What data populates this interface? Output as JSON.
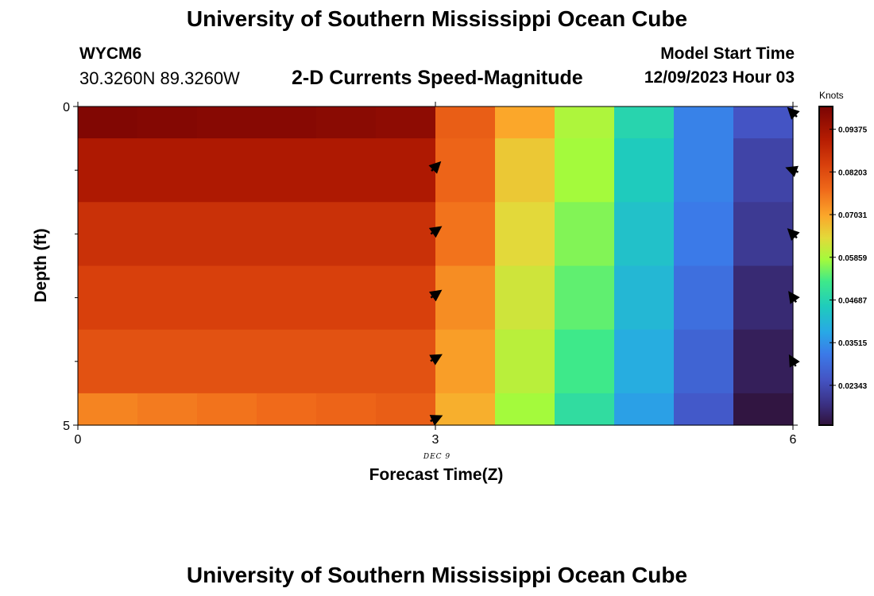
{
  "header": {
    "title": "University of Southern Mississippi Ocean Cube",
    "station_id": "WYCM6",
    "station_coords": "30.3260N  89.3260W",
    "subtitle": "2-D Currents Speed-Magnitude",
    "model_start_label": "Model Start Time",
    "model_start_value": "12/09/2023 Hour 03"
  },
  "footer": {
    "title": "University of Southern Mississippi Ocean Cube"
  },
  "chart_data": {
    "type": "heatmap",
    "title": "2-D Currents Speed-Magnitude",
    "xlabel": "Forecast Time(Z)",
    "ylabel": "Depth (ft)",
    "date_label": "DEC 9",
    "xlim": [
      0,
      6
    ],
    "ylim": [
      0,
      5
    ],
    "x_ticks": [
      "0",
      "3",
      "6"
    ],
    "y_ticks": [
      "0",
      "5"
    ],
    "y_minor_ticks": [
      1,
      2,
      3,
      4
    ],
    "x_columns": [
      0.25,
      0.75,
      1.25,
      1.75,
      2.25,
      2.75,
      3.25,
      3.75,
      4.25,
      4.75,
      5.25,
      5.75
    ],
    "x_column_width": 0.5,
    "y_rows": [
      0,
      0.75,
      1.75,
      2.75,
      3.75,
      4.75
    ],
    "y_row_edges": [
      0,
      0.5,
      1.5,
      2.5,
      3.5,
      4.5,
      5
    ],
    "values": [
      [
        0.099,
        0.0985,
        0.098,
        0.098,
        0.0975,
        0.097,
        0.079,
        0.07,
        0.059,
        0.047,
        0.033,
        0.025
      ],
      [
        0.092,
        0.092,
        0.092,
        0.092,
        0.092,
        0.092,
        0.078,
        0.066,
        0.058,
        0.045,
        0.033,
        0.022
      ],
      [
        0.087,
        0.087,
        0.087,
        0.087,
        0.087,
        0.087,
        0.076,
        0.064,
        0.056,
        0.043,
        0.032,
        0.02
      ],
      [
        0.084,
        0.084,
        0.084,
        0.084,
        0.084,
        0.084,
        0.073,
        0.062,
        0.054,
        0.041,
        0.03,
        0.017
      ],
      [
        0.081,
        0.081,
        0.081,
        0.081,
        0.081,
        0.081,
        0.071,
        0.06,
        0.052,
        0.039,
        0.028,
        0.015
      ],
      [
        0.074,
        0.075,
        0.076,
        0.077,
        0.078,
        0.079,
        0.069,
        0.058,
        0.049,
        0.037,
        0.026,
        0.013
      ]
    ],
    "vectors": [
      {
        "x": 3,
        "y": 0.95,
        "dir_deg": 315
      },
      {
        "x": 3,
        "y": 1.95,
        "dir_deg": 325
      },
      {
        "x": 3,
        "y": 2.95,
        "dir_deg": 325
      },
      {
        "x": 3,
        "y": 3.95,
        "dir_deg": 330
      },
      {
        "x": 3,
        "y": 4.9,
        "dir_deg": 335
      },
      {
        "x": 6,
        "y": 0.1,
        "dir_deg": 225
      },
      {
        "x": 6,
        "y": 1.0,
        "dir_deg": 200
      },
      {
        "x": 6,
        "y": 2.0,
        "dir_deg": 225
      },
      {
        "x": 6,
        "y": 3.0,
        "dir_deg": 235
      },
      {
        "x": 6,
        "y": 4.0,
        "dir_deg": 240
      }
    ],
    "colorbar": {
      "units": "Knots",
      "range": [
        0.0125,
        0.1
      ],
      "tick_values": [
        0.09375,
        0.08203,
        0.07031,
        0.05859,
        0.04687,
        0.03515,
        0.02343
      ],
      "tick_labels": [
        "0.09375",
        "0.08203",
        "0.07031",
        "0.05859",
        "0.04687",
        "0.03515",
        "0.02343"
      ],
      "stops": [
        {
          "v": 0.0125,
          "color": "#30123b"
        },
        {
          "v": 0.018,
          "color": "#3a2f80"
        },
        {
          "v": 0.025,
          "color": "#4454c4"
        },
        {
          "v": 0.032,
          "color": "#3b7ae8"
        },
        {
          "v": 0.038,
          "color": "#28a8e6"
        },
        {
          "v": 0.045,
          "color": "#1fcbbd"
        },
        {
          "v": 0.052,
          "color": "#3ee98a"
        },
        {
          "v": 0.058,
          "color": "#a4fa3c"
        },
        {
          "v": 0.064,
          "color": "#e3d93a"
        },
        {
          "v": 0.07,
          "color": "#fba72a"
        },
        {
          "v": 0.077,
          "color": "#f06a1a"
        },
        {
          "v": 0.084,
          "color": "#d8400c"
        },
        {
          "v": 0.091,
          "color": "#b51c02"
        },
        {
          "v": 0.1,
          "color": "#7a0403"
        }
      ]
    }
  }
}
